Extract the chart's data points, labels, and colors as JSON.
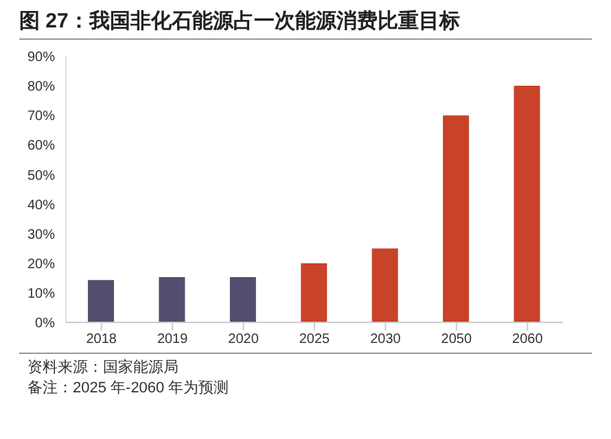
{
  "chart_data": {
    "type": "bar",
    "title": "图 27：我国非化石能源占一次能源消费比重目标",
    "categories": [
      "2018",
      "2019",
      "2020",
      "2025",
      "2030",
      "2050",
      "2060"
    ],
    "values": [
      14.3,
      15.3,
      15.3,
      20,
      25,
      70,
      80
    ],
    "colors": [
      "#524f6e",
      "#524f6e",
      "#524f6e",
      "#c8432a",
      "#c8432a",
      "#c8432a",
      "#c8432a"
    ],
    "ylim": [
      0,
      90
    ],
    "yticks": [
      {
        "value": 0,
        "label": "0%"
      },
      {
        "value": 10,
        "label": "10%"
      },
      {
        "value": 20,
        "label": "20%"
      },
      {
        "value": 30,
        "label": "30%"
      },
      {
        "value": 40,
        "label": "40%"
      },
      {
        "value": 50,
        "label": "50%"
      },
      {
        "value": 60,
        "label": "60%"
      },
      {
        "value": 70,
        "label": "70%"
      },
      {
        "value": 80,
        "label": "80%"
      },
      {
        "value": 90,
        "label": "90%"
      }
    ],
    "grid": false,
    "legend": false,
    "annotations": [
      "资料来源：国家能源局",
      "备注：2025 年-2060 年为预测"
    ]
  }
}
